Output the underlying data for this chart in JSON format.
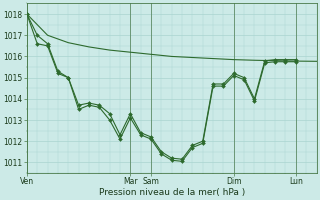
{
  "bg_color": "#cceae7",
  "grid_color": "#aad4d0",
  "line_color": "#2d6a2d",
  "ylabel": "Pression niveau de la mer( hPa )",
  "ylim": [
    1010.5,
    1018.5
  ],
  "yticks": [
    1011,
    1012,
    1013,
    1014,
    1015,
    1016,
    1017,
    1018
  ],
  "xtick_labels": [
    "Ven",
    "Mar",
    "Sam",
    "Dim",
    "Lun"
  ],
  "xtick_positions": [
    0,
    60,
    72,
    120,
    156
  ],
  "vline_positions": [
    0,
    60,
    72,
    120,
    156
  ],
  "xlim": [
    0,
    168
  ],
  "series1": {
    "x": [
      0,
      12,
      24,
      36,
      48,
      60,
      72,
      84,
      96,
      108,
      120,
      132,
      144,
      156,
      168
    ],
    "y": [
      1018.0,
      1017.0,
      1016.65,
      1016.45,
      1016.3,
      1016.2,
      1016.1,
      1016.0,
      1015.95,
      1015.9,
      1015.85,
      1015.82,
      1015.8,
      1015.78,
      1015.77
    ]
  },
  "series2": {
    "x": [
      0,
      6,
      12,
      18,
      24,
      30,
      36,
      42,
      48,
      54,
      60,
      66,
      72,
      78,
      84,
      90,
      96,
      102,
      108,
      114,
      120,
      126,
      132,
      138,
      144,
      150,
      156
    ],
    "y": [
      1018.0,
      1017.0,
      1016.6,
      1015.3,
      1015.0,
      1013.7,
      1013.8,
      1013.7,
      1013.3,
      1012.3,
      1013.3,
      1012.4,
      1012.2,
      1011.5,
      1011.2,
      1011.15,
      1011.8,
      1012.0,
      1014.7,
      1014.7,
      1015.2,
      1015.0,
      1014.0,
      1015.8,
      1015.85,
      1015.85,
      1015.85
    ]
  },
  "series3": {
    "x": [
      0,
      6,
      12,
      18,
      24,
      30,
      36,
      42,
      48,
      54,
      60,
      66,
      72,
      78,
      84,
      90,
      96,
      102,
      108,
      114,
      120,
      126,
      132,
      138,
      144,
      150,
      156
    ],
    "y": [
      1018.0,
      1016.6,
      1016.5,
      1015.2,
      1015.0,
      1013.5,
      1013.7,
      1013.6,
      1013.0,
      1012.1,
      1013.1,
      1012.3,
      1012.1,
      1011.4,
      1011.1,
      1011.05,
      1011.7,
      1011.9,
      1014.6,
      1014.6,
      1015.1,
      1014.9,
      1013.9,
      1015.7,
      1015.75,
      1015.75,
      1015.75
    ]
  }
}
